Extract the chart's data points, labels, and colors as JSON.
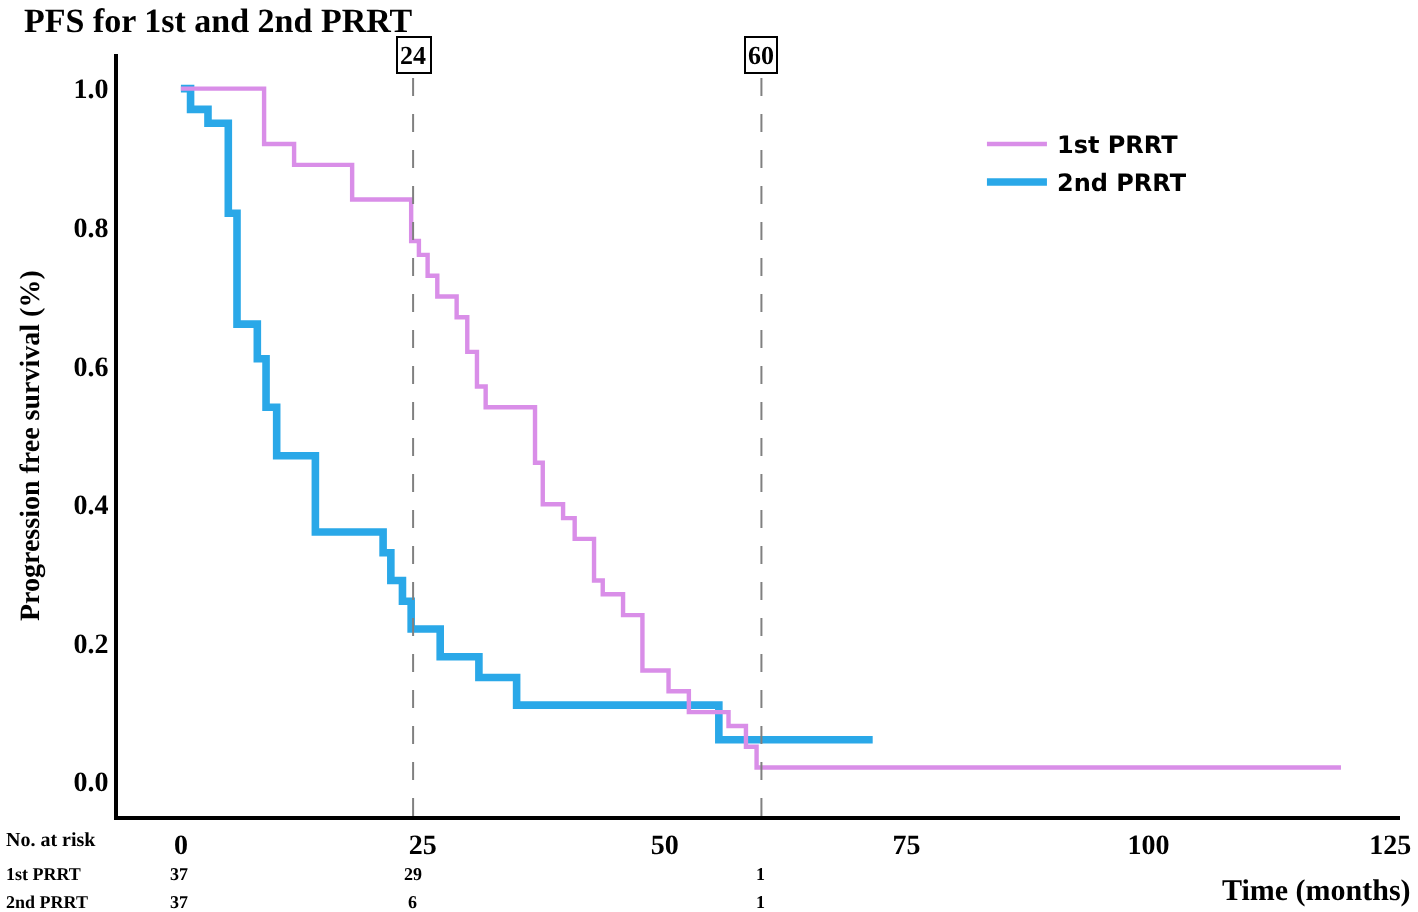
{
  "chart_data": {
    "type": "step",
    "title": "PFS for 1st and 2nd PRRT",
    "xlabel": "Time (months)",
    "ylabel": "Progression free survival (%)",
    "series": [
      {
        "name": "1st PRRT",
        "color": "#d98ee8",
        "x": [
          0,
          8.6,
          11.7,
          17.7,
          23.8,
          24.6,
          25.5,
          26.5,
          28.5,
          29.6,
          30.6,
          31.5,
          36.6,
          37.4,
          39.5,
          40.7,
          42.7,
          43.6,
          45.7,
          47.7,
          50.4,
          52.5,
          56.6,
          58.4,
          59.5,
          119.9
        ],
        "values": [
          1.0,
          0.92,
          0.89,
          0.84,
          0.78,
          0.76,
          0.73,
          0.7,
          0.67,
          0.62,
          0.57,
          0.54,
          0.46,
          0.4,
          0.38,
          0.35,
          0.29,
          0.27,
          0.24,
          0.16,
          0.13,
          0.1,
          0.08,
          0.05,
          0.02,
          0.02
        ]
      },
      {
        "name": "2nd PRRT",
        "color": "#2aa8e8",
        "x": [
          0,
          1,
          2.8,
          4.9,
          5.8,
          7.9,
          8.8,
          9.9,
          13.9,
          20.9,
          21.7,
          22.9,
          23.8,
          26.8,
          30.8,
          34.7,
          55.6,
          71.5
        ],
        "values": [
          1.0,
          0.97,
          0.95,
          0.82,
          0.66,
          0.61,
          0.54,
          0.47,
          0.36,
          0.33,
          0.29,
          0.26,
          0.22,
          0.18,
          0.15,
          0.11,
          0.06,
          0.06
        ]
      }
    ],
    "xlim": [
      -6.5,
      126
    ],
    "xticks": [
      0,
      25,
      50,
      75,
      100,
      125
    ],
    "ylim": [
      -0.05,
      1.05
    ],
    "yticks": [
      {
        "value": 0,
        "label": "0.0"
      },
      0.2,
      0.4,
      0.6,
      0.8,
      {
        "value": 1,
        "label": "1.0"
      }
    ],
    "ref_lines": [
      {
        "axis": "x",
        "value": 24,
        "label": "24",
        "color": "#808080",
        "line_style": "dashed"
      },
      {
        "axis": "x",
        "value": 60,
        "label": "60",
        "color": "#808080",
        "line_style": "dashed"
      }
    ],
    "annotations": [
      "No. at risk",
      [
        "1st PRRT",
        "37",
        "29",
        "1"
      ],
      [
        "2nd PRRT",
        "37",
        "6",
        "1"
      ]
    ],
    "legend": "top right",
    "marker": "none",
    "line_style": "solid"
  }
}
